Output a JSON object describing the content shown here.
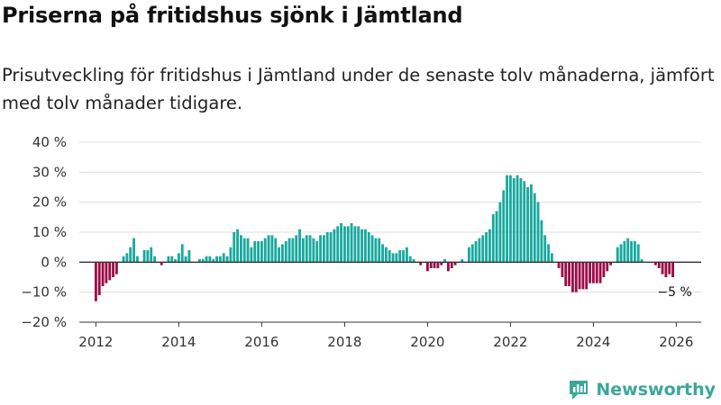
{
  "header": {
    "title": "Priserna på fritidshus sjönk i Jämtland",
    "subtitle": "Prisutveckling för fritidshus i Jämtland under de senaste tolv månaderna, jämfört med tolv månader tidigare."
  },
  "brand": {
    "name": "Newsworthy",
    "icon": "newsworthy-logo-icon"
  },
  "colors": {
    "positive": "#18a99e",
    "negative": "#9c0a48",
    "grid": "#dddddd",
    "axis": "#333333",
    "brand": "#3aa79a"
  },
  "chart_data": {
    "type": "bar",
    "title": "Priserna på fritidshus sjönk i Jämtland",
    "xlabel": "",
    "ylabel": "",
    "ylim": [
      -20,
      40
    ],
    "yticks": [
      -20,
      -10,
      0,
      10,
      20,
      30,
      40
    ],
    "ytick_labels": [
      "−20 %",
      "−10 %",
      "0 %",
      "10 %",
      "20 %",
      "30 %",
      "40 %"
    ],
    "xlim": [
      2011.6,
      2026.6
    ],
    "xticks": [
      2012,
      2014,
      2016,
      2018,
      2020,
      2022,
      2024,
      2026
    ],
    "xtick_labels": [
      "2012",
      "2014",
      "2016",
      "2018",
      "2020",
      "2022",
      "2024",
      "2026"
    ],
    "grid": true,
    "start": {
      "year": 2012,
      "month": 1
    },
    "values": [
      -13,
      -11,
      -8,
      -7,
      -6,
      -5,
      -4,
      0,
      2,
      3,
      5,
      8,
      2,
      0,
      4,
      4,
      5,
      2,
      0,
      -1,
      0,
      2,
      2,
      1,
      3,
      6,
      2,
      4,
      0,
      0,
      1,
      1,
      2,
      2,
      1,
      2,
      2,
      3,
      2,
      5,
      10,
      11,
      9,
      8,
      8,
      5,
      7,
      7,
      7,
      8,
      9,
      9,
      8,
      5,
      6,
      7,
      8,
      8,
      9,
      11,
      8,
      9,
      9,
      8,
      7,
      9,
      9,
      10,
      10,
      11,
      12,
      13,
      12,
      12,
      13,
      12,
      12,
      11,
      11,
      10,
      9,
      8,
      8,
      6,
      5,
      4,
      3,
      3,
      4,
      4,
      5,
      2,
      1,
      0,
      -1,
      0,
      -3,
      -2,
      -2,
      -2,
      -1,
      1,
      -3,
      -2,
      -1,
      0,
      1,
      0,
      5,
      6,
      7,
      8,
      9,
      10,
      11,
      16,
      17,
      20,
      24,
      29,
      29,
      28,
      29,
      28,
      27,
      25,
      26,
      23,
      20,
      14,
      9,
      6,
      3,
      0,
      -2,
      -5,
      -8,
      -8,
      -10,
      -10,
      -9,
      -9,
      -9,
      -7,
      -7,
      -7,
      -7,
      -5,
      -3,
      -1,
      0,
      5,
      6,
      7,
      8,
      7,
      7,
      6,
      1,
      0,
      0,
      0,
      -1,
      -2,
      -4,
      -5,
      -4,
      -5
    ],
    "annotations": [
      {
        "label": "−5 %",
        "anchor": "last-value"
      }
    ]
  }
}
